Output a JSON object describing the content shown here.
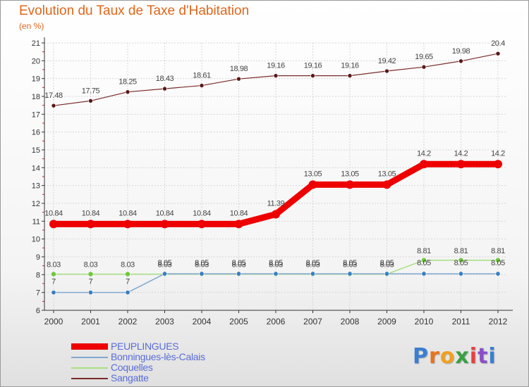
{
  "title": "Evolution du Taux de Taxe d'Habitation",
  "subtitle": "(en %)",
  "logo": {
    "letters": [
      "P",
      "r",
      "o",
      "x",
      "i",
      "t",
      "i"
    ],
    "colors": [
      "#3a7fd0",
      "#e8741a",
      "#f0a020",
      "#3aa040",
      "#e84040",
      "#8a50c8",
      "#3a7fd0"
    ]
  },
  "colors": {
    "title": "#e0661a",
    "legend_text": "#5a6dd8",
    "axis": "#333333",
    "grid": "#d7d7d7"
  },
  "chart_data": {
    "type": "line",
    "title": "Evolution du Taux de Taxe d'Habitation",
    "subtitle": "(en %)",
    "xlabel": "",
    "ylabel": "",
    "x": [
      "2000",
      "2001",
      "2002",
      "2003",
      "2004",
      "2005",
      "2006",
      "2007",
      "2008",
      "2009",
      "2010",
      "2011",
      "2012"
    ],
    "ylim": [
      6,
      21
    ],
    "yticks": [
      "6",
      "7",
      "8",
      "9",
      "10",
      "11",
      "12",
      "13",
      "14",
      "15",
      "16",
      "17",
      "18",
      "19",
      "20",
      "21"
    ],
    "grid": true,
    "legend_position": "bottom-left",
    "series": [
      {
        "name": "PEUPLINGUES",
        "color": "#ee0000",
        "marker_color": "#ee0000",
        "values": [
          10.84,
          10.84,
          10.84,
          10.84,
          10.84,
          10.84,
          11.39,
          13.05,
          13.05,
          13.05,
          14.2,
          14.2,
          14.2
        ],
        "labels": [
          "10.84",
          "10.84",
          "10.84",
          "10.84",
          "10.84",
          "10.84",
          "11.39",
          "13.05",
          "13.05",
          "13.05",
          "14.2",
          "14.2",
          "14.2"
        ]
      },
      {
        "name": "Bonningues-lès-Calais",
        "color": "#80a8d0",
        "marker_color": "#3a7fc0",
        "values": [
          7,
          7,
          7,
          8.05,
          8.05,
          8.05,
          8.05,
          8.05,
          8.05,
          8.05,
          8.05,
          8.05,
          8.05
        ],
        "labels": [
          "7",
          "7",
          "7",
          "8.05",
          "8.05",
          "8.05",
          "8.05",
          "8.05",
          "8.05",
          "8.05",
          "8.05",
          "8.05",
          "8.05"
        ]
      },
      {
        "name": "Coquelles",
        "color": "#a8e080",
        "marker_color": "#70c840",
        "values": [
          8.03,
          8.03,
          8.03,
          8.03,
          8.03,
          8.03,
          8.03,
          8.03,
          8.03,
          8.03,
          8.81,
          8.81,
          8.81
        ],
        "labels": [
          "8.03",
          "8.03",
          "8.03",
          "8.03",
          "8.03",
          "8.03",
          "8.03",
          "8.03",
          "8.03",
          "8.03",
          "8.81",
          "8.81",
          "8.81"
        ]
      },
      {
        "name": "Sangatte",
        "color": "#7a2a2a",
        "marker_color": "#5a1818",
        "values": [
          17.48,
          17.75,
          18.25,
          18.43,
          18.61,
          18.98,
          19.16,
          19.16,
          19.16,
          19.42,
          19.65,
          19.98,
          20.4
        ],
        "labels": [
          "17.48",
          "17.75",
          "18.25",
          "18.43",
          "18.61",
          "18.98",
          "19.16",
          "19.16",
          "19.16",
          "19.42",
          "19.65",
          "19.98",
          "20.4"
        ]
      }
    ]
  }
}
